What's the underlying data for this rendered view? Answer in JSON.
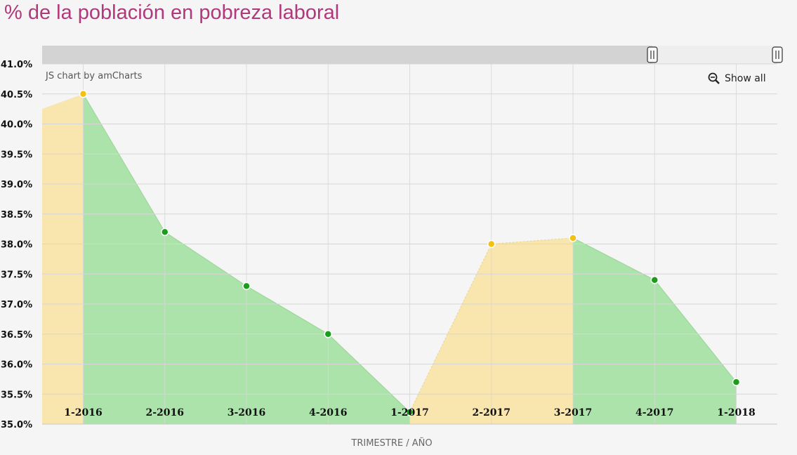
{
  "title": "% de la población en pobreza laboral",
  "credit": "JS chart by amCharts",
  "show_all_label": "Show all",
  "colors": {
    "title": "#b0387d",
    "decrease_fill": "#ace3aa",
    "increase_fill": "#f9e5ae",
    "decrease_point": "#1a9e1a",
    "increase_point": "#f2c114",
    "grid": "#d6d6d6",
    "scrollbar_track": "#d3d3d3"
  },
  "chart_data": {
    "type": "area",
    "categories": [
      "1-2016",
      "2-2016",
      "3-2016",
      "4-2016",
      "1-2017",
      "2-2017",
      "3-2017",
      "4-2017",
      "1-2018"
    ],
    "values": [
      40.5,
      38.2,
      37.3,
      36.5,
      35.2,
      38.0,
      38.1,
      37.4,
      35.7
    ],
    "leading_value": 40.25,
    "ylim": [
      35.0,
      41.0
    ],
    "yticks": [
      "35.0%",
      "35.5%",
      "36.0%",
      "36.5%",
      "37.0%",
      "37.5%",
      "38.0%",
      "38.5%",
      "39.0%",
      "39.5%",
      "40.0%",
      "40.5%",
      "41.0%"
    ],
    "xlabel": "TRIMESTRE / AÑO",
    "ylabel": "",
    "grid": true,
    "legend": "none"
  }
}
